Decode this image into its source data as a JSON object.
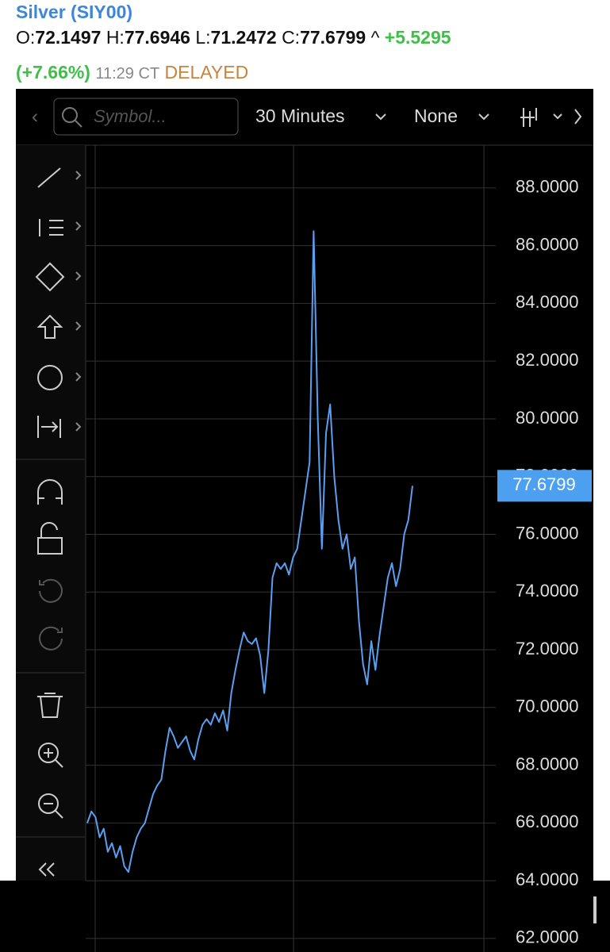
{
  "header": {
    "title": "Silver (SIY00)",
    "open_label": "O:",
    "open": "72.1497",
    "high_label": "H:",
    "high": "77.6946",
    "low_label": "L:",
    "low": "71.2472",
    "close_label": "C:",
    "close": "77.6799",
    "arrow": "^",
    "change": "+5.5295",
    "change_percent": "(+7.66%)",
    "time": "11:29 CT",
    "status": "DELAYED"
  },
  "toolbar": {
    "symbol_placeholder": "Symbol...",
    "interval": "30 Minutes",
    "study": "None"
  },
  "chart_data": {
    "type": "line",
    "color": "#5b9ff0",
    "grid": true,
    "values": [
      66.0,
      66.4,
      66.2,
      65.5,
      65.8,
      65.0,
      65.3,
      64.8,
      65.2,
      64.5,
      64.3,
      65.0,
      65.5,
      65.8,
      66.0,
      66.5,
      67.0,
      67.3,
      67.5,
      68.5,
      69.3,
      69.0,
      68.6,
      68.8,
      69.0,
      68.5,
      68.2,
      68.9,
      69.4,
      69.6,
      69.4,
      69.8,
      69.5,
      69.9,
      69.2,
      70.5,
      71.3,
      72.0,
      72.6,
      72.3,
      72.2,
      72.4,
      71.8,
      70.5,
      72.0,
      74.5,
      75.0,
      74.8,
      75.0,
      74.6,
      75.2,
      75.5,
      76.5,
      77.5,
      78.5,
      86.5,
      80.0,
      75.5,
      79.5,
      80.5,
      78.0,
      76.5,
      75.5,
      76.0,
      74.8,
      75.2,
      73.0,
      71.5,
      70.8,
      72.3,
      71.3,
      72.5,
      73.5,
      74.5,
      75.0,
      74.2,
      74.8,
      76.0,
      76.5,
      77.6799
    ],
    "last_price": 77.6799,
    "ylim": [
      61.53,
      89.48
    ],
    "yticks": [
      {
        "value": 62,
        "label": "62.0000"
      },
      {
        "value": 64,
        "label": "64.0000"
      },
      {
        "value": 66,
        "label": "66.0000"
      },
      {
        "value": 68,
        "label": "68.0000"
      },
      {
        "value": 70,
        "label": "70.0000"
      },
      {
        "value": 72,
        "label": "72.0000"
      },
      {
        "value": 74,
        "label": "74.0000"
      },
      {
        "value": 76,
        "label": "76.0000"
      },
      {
        "value": 78,
        "label": "78.0000"
      },
      {
        "value": 80,
        "label": "80.0000"
      },
      {
        "value": 82,
        "label": "82.0000"
      },
      {
        "value": 84,
        "label": "84.0000"
      },
      {
        "value": 86,
        "label": "86.0000"
      },
      {
        "value": 88,
        "label": "88.0000"
      }
    ]
  }
}
